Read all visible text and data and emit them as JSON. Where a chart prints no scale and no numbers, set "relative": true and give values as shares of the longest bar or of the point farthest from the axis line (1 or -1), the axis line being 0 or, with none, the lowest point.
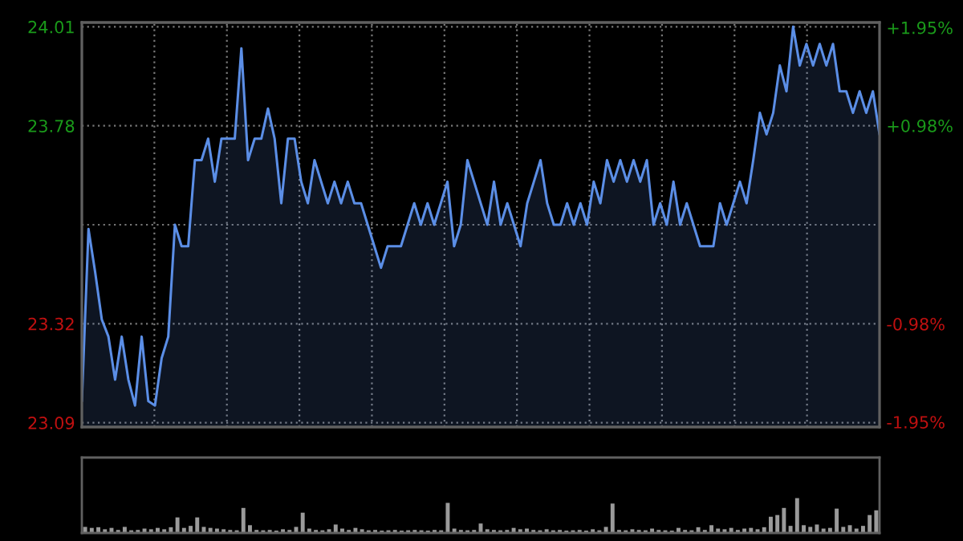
{
  "chart_data": [
    {
      "type": "area",
      "categories": [
        null,
        null,
        null,
        null,
        null,
        null,
        null,
        null,
        null,
        null,
        null,
        null,
        null,
        null,
        null,
        null,
        null,
        null,
        null,
        null,
        null,
        null,
        null,
        null,
        null,
        null,
        null,
        null,
        null,
        null,
        null,
        null,
        null,
        null,
        null,
        null,
        null,
        null,
        null,
        null,
        null,
        null,
        null,
        null,
        null,
        null,
        null,
        null,
        null,
        null,
        null,
        null,
        null,
        null,
        null,
        null,
        null,
        null,
        null,
        null,
        null,
        null,
        null,
        null,
        null,
        null,
        null,
        null,
        null,
        null,
        null,
        null,
        null,
        null,
        null,
        null,
        null,
        null,
        null,
        null,
        null,
        null,
        null,
        null,
        null,
        null,
        null,
        null,
        null,
        null,
        null,
        null,
        null,
        null,
        null,
        null,
        null,
        null,
        null,
        null,
        null,
        null,
        null,
        null,
        null,
        null,
        null,
        null,
        null,
        null,
        null,
        null,
        null,
        null,
        null,
        null,
        null,
        null,
        null,
        null,
        null
      ],
      "series": [
        {
          "color": "#5b8ee6",
          "values": [
            23.14,
            23.54,
            23.44,
            23.33,
            23.29,
            23.19,
            23.29,
            23.19,
            23.13,
            23.29,
            23.14,
            23.13,
            23.24,
            23.29,
            23.55,
            23.5,
            23.5,
            23.7,
            23.7,
            23.75,
            23.65,
            23.75,
            23.75,
            23.75,
            23.96,
            23.7,
            23.75,
            23.75,
            23.82,
            23.75,
            23.6,
            23.75,
            23.75,
            23.65,
            23.6,
            23.7,
            23.65,
            23.6,
            23.65,
            23.6,
            23.65,
            23.6,
            23.6,
            23.55,
            23.5,
            23.45,
            23.5,
            23.5,
            23.5,
            23.55,
            23.6,
            23.55,
            23.6,
            23.55,
            23.6,
            23.65,
            23.5,
            23.55,
            23.7,
            23.65,
            23.6,
            23.55,
            23.65,
            23.55,
            23.6,
            23.55,
            23.5,
            23.6,
            23.65,
            23.7,
            23.6,
            23.55,
            23.55,
            23.6,
            23.55,
            23.6,
            23.55,
            23.65,
            23.6,
            23.7,
            23.65,
            23.7,
            23.65,
            23.7,
            23.65,
            23.7,
            23.55,
            23.6,
            23.55,
            23.65,
            23.55,
            23.6,
            23.55,
            23.5,
            23.5,
            23.5,
            23.6,
            23.55,
            23.6,
            23.65,
            23.6,
            23.7,
            23.81,
            23.76,
            23.81,
            23.92,
            23.86,
            24.01,
            23.92,
            23.97,
            23.92,
            23.97,
            23.92,
            23.97,
            23.86,
            23.86,
            23.81,
            23.86,
            23.81,
            23.86,
            23.76
          ]
        }
      ],
      "ylim": [
        23.08,
        24.02
      ],
      "yticks": [
        23.09,
        23.32,
        {
          "value": 23.55,
          "label": null
        },
        23.78,
        24.01
      ],
      "y2lim": [
        -2.0,
        2.0
      ],
      "y2ticks": [
        {
          "value": -1.95,
          "label": "-1.95%"
        },
        {
          "value": -0.98,
          "label": "-0.98%"
        },
        {
          "value": 0.98,
          "label": "+0.98%"
        },
        {
          "value": 1.95,
          "label": "+1.95%"
        }
      ],
      "tick_labels": "y",
      "grid": true,
      "legend": false
    },
    {
      "type": "bar",
      "relative": true,
      "color": "#9a9a9a",
      "legend": false,
      "tick_labels": false,
      "categories": [
        null,
        null,
        null,
        null,
        null,
        null,
        null,
        null,
        null,
        null,
        null,
        null,
        null,
        null,
        null,
        null,
        null,
        null,
        null,
        null,
        null,
        null,
        null,
        null,
        null,
        null,
        null,
        null,
        null,
        null,
        null,
        null,
        null,
        null,
        null,
        null,
        null,
        null,
        null,
        null,
        null,
        null,
        null,
        null,
        null,
        null,
        null,
        null,
        null,
        null,
        null,
        null,
        null,
        null,
        null,
        null,
        null,
        null,
        null,
        null,
        null,
        null,
        null,
        null,
        null,
        null,
        null,
        null,
        null,
        null,
        null,
        null,
        null,
        null,
        null,
        null,
        null,
        null,
        null,
        null,
        null,
        null,
        null,
        null,
        null,
        null,
        null,
        null,
        null,
        null,
        null,
        null,
        null,
        null,
        null,
        null,
        null,
        null,
        null,
        null,
        null,
        null,
        null,
        null,
        null,
        null,
        null,
        null,
        null,
        null,
        null,
        null,
        null,
        null,
        null,
        null,
        null,
        null,
        null,
        null,
        null
      ],
      "values": [
        0.15,
        0.12,
        0.14,
        0.08,
        0.12,
        0.06,
        0.15,
        0.05,
        0.06,
        0.1,
        0.08,
        0.12,
        0.08,
        0.14,
        0.43,
        0.12,
        0.18,
        0.43,
        0.15,
        0.12,
        0.1,
        0.08,
        0.06,
        0.05,
        0.71,
        0.2,
        0.06,
        0.05,
        0.06,
        0.04,
        0.08,
        0.06,
        0.15,
        0.57,
        0.1,
        0.06,
        0.05,
        0.08,
        0.22,
        0.1,
        0.06,
        0.12,
        0.08,
        0.05,
        0.06,
        0.04,
        0.05,
        0.06,
        0.04,
        0.05,
        0.06,
        0.05,
        0.04,
        0.06,
        0.05,
        0.86,
        0.1,
        0.06,
        0.05,
        0.06,
        0.25,
        0.08,
        0.06,
        0.05,
        0.06,
        0.12,
        0.08,
        0.1,
        0.06,
        0.05,
        0.08,
        0.05,
        0.06,
        0.04,
        0.05,
        0.06,
        0.04,
        0.08,
        0.05,
        0.15,
        0.84,
        0.06,
        0.05,
        0.08,
        0.06,
        0.05,
        0.1,
        0.06,
        0.05,
        0.04,
        0.12,
        0.06,
        0.05,
        0.14,
        0.06,
        0.2,
        0.1,
        0.08,
        0.12,
        0.06,
        0.1,
        0.12,
        0.08,
        0.14,
        0.45,
        0.5,
        0.71,
        0.18,
        1.0,
        0.2,
        0.15,
        0.22,
        0.1,
        0.12,
        0.69,
        0.15,
        0.2,
        0.1,
        0.18,
        0.5,
        0.64
      ]
    }
  ]
}
